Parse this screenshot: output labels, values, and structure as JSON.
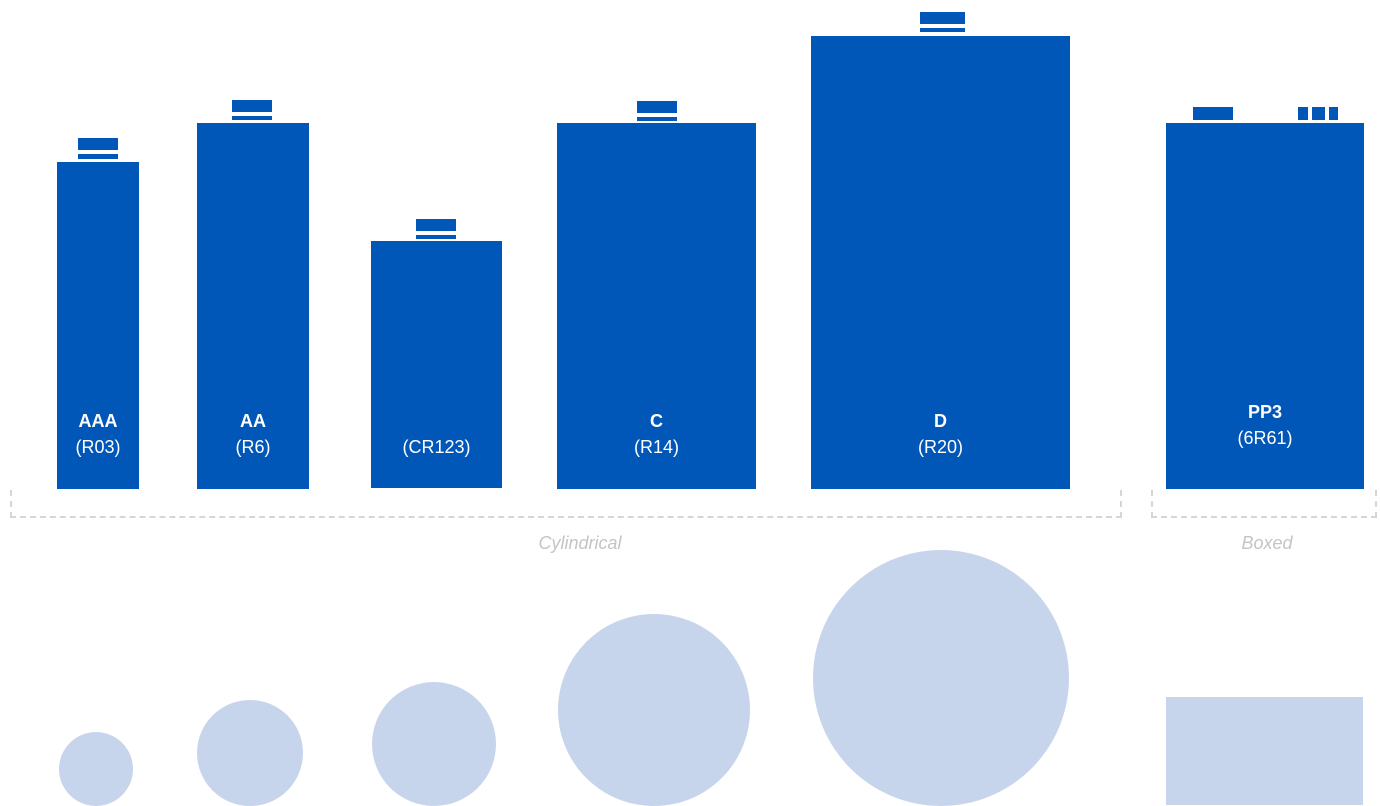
{
  "colors": {
    "battery": "#0057b8",
    "footprint": "#c7d5ec",
    "bracket": "#d6d6d6",
    "group_label": "#c4c4c4"
  },
  "batteries": [
    {
      "name": "AAA",
      "code": "(R03)"
    },
    {
      "name": "AA",
      "code": "(R6)"
    },
    {
      "name": "",
      "code": "(CR123)"
    },
    {
      "name": "C",
      "code": "(R14)"
    },
    {
      "name": "D",
      "code": "(R20)"
    },
    {
      "name": "PP3",
      "code": "(6R61)"
    }
  ],
  "groups": {
    "cylindrical": "Cylindrical",
    "boxed": "Boxed"
  }
}
